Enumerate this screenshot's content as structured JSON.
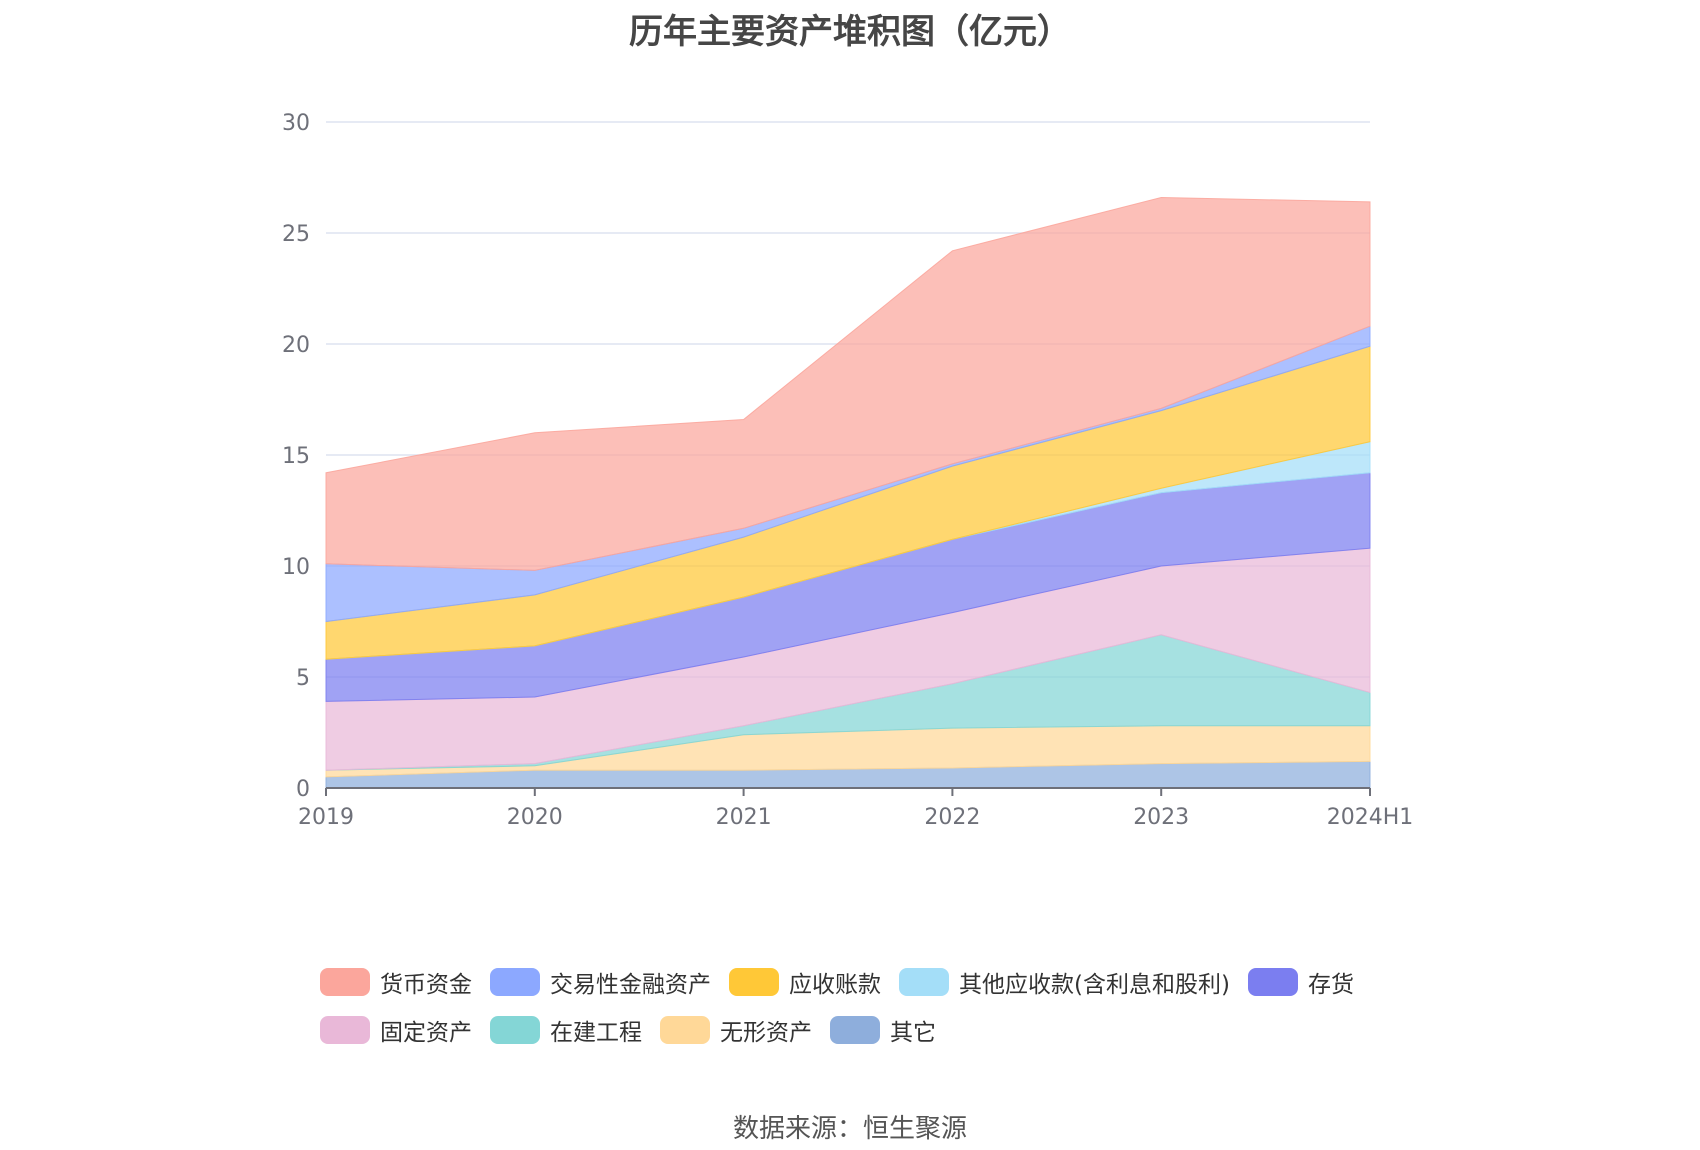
{
  "chart_data": {
    "type": "area",
    "stacked": true,
    "title": "历年主要资产堆积图（亿元）",
    "xlabel": "",
    "ylabel": "",
    "categories": [
      "2019",
      "2020",
      "2021",
      "2022",
      "2023",
      "2024H1"
    ],
    "ylim": [
      0,
      30
    ],
    "yticks": [
      0,
      5,
      10,
      15,
      20,
      25,
      30
    ],
    "grid": true,
    "legend_position": "bottom",
    "series": [
      {
        "name": "其它",
        "color": "#8eaedc",
        "values": [
          0.5,
          0.8,
          0.8,
          0.9,
          1.1,
          1.2
        ]
      },
      {
        "name": "无形资产",
        "color": "#ffd898",
        "values": [
          0.3,
          0.2,
          1.6,
          1.8,
          1.7,
          1.6
        ]
      },
      {
        "name": "在建工程",
        "color": "#84d6d6",
        "values": [
          0.0,
          0.1,
          0.4,
          2.0,
          4.1,
          1.5
        ]
      },
      {
        "name": "固定资产",
        "color": "#e9b8d8",
        "values": [
          3.1,
          3.0,
          3.1,
          3.2,
          3.1,
          6.5
        ]
      },
      {
        "name": "存货",
        "color": "#7b7ef0",
        "values": [
          1.9,
          2.3,
          2.7,
          3.3,
          3.3,
          3.4
        ]
      },
      {
        "name": "其他应收款(含利息和股利)",
        "color": "#a4def8",
        "values": [
          0.0,
          0.0,
          0.0,
          0.0,
          0.2,
          1.4
        ]
      },
      {
        "name": "应收账款",
        "color": "#ffc837",
        "values": [
          1.7,
          2.3,
          2.7,
          3.3,
          3.5,
          4.3
        ]
      },
      {
        "name": "交易性金融资产",
        "color": "#8ca8ff",
        "values": [
          2.6,
          1.1,
          0.4,
          0.1,
          0.1,
          0.9
        ]
      },
      {
        "name": "货币资金",
        "color": "#fba69c",
        "values": [
          4.1,
          6.2,
          4.9,
          9.6,
          9.5,
          5.6
        ]
      }
    ],
    "legend_order": [
      "货币资金",
      "交易性金融资产",
      "应收账款",
      "其他应收款(含利息和股利)",
      "存货",
      "固定资产",
      "在建工程",
      "无形资产",
      "其它"
    ]
  },
  "source_note": "数据来源：恒生聚源"
}
